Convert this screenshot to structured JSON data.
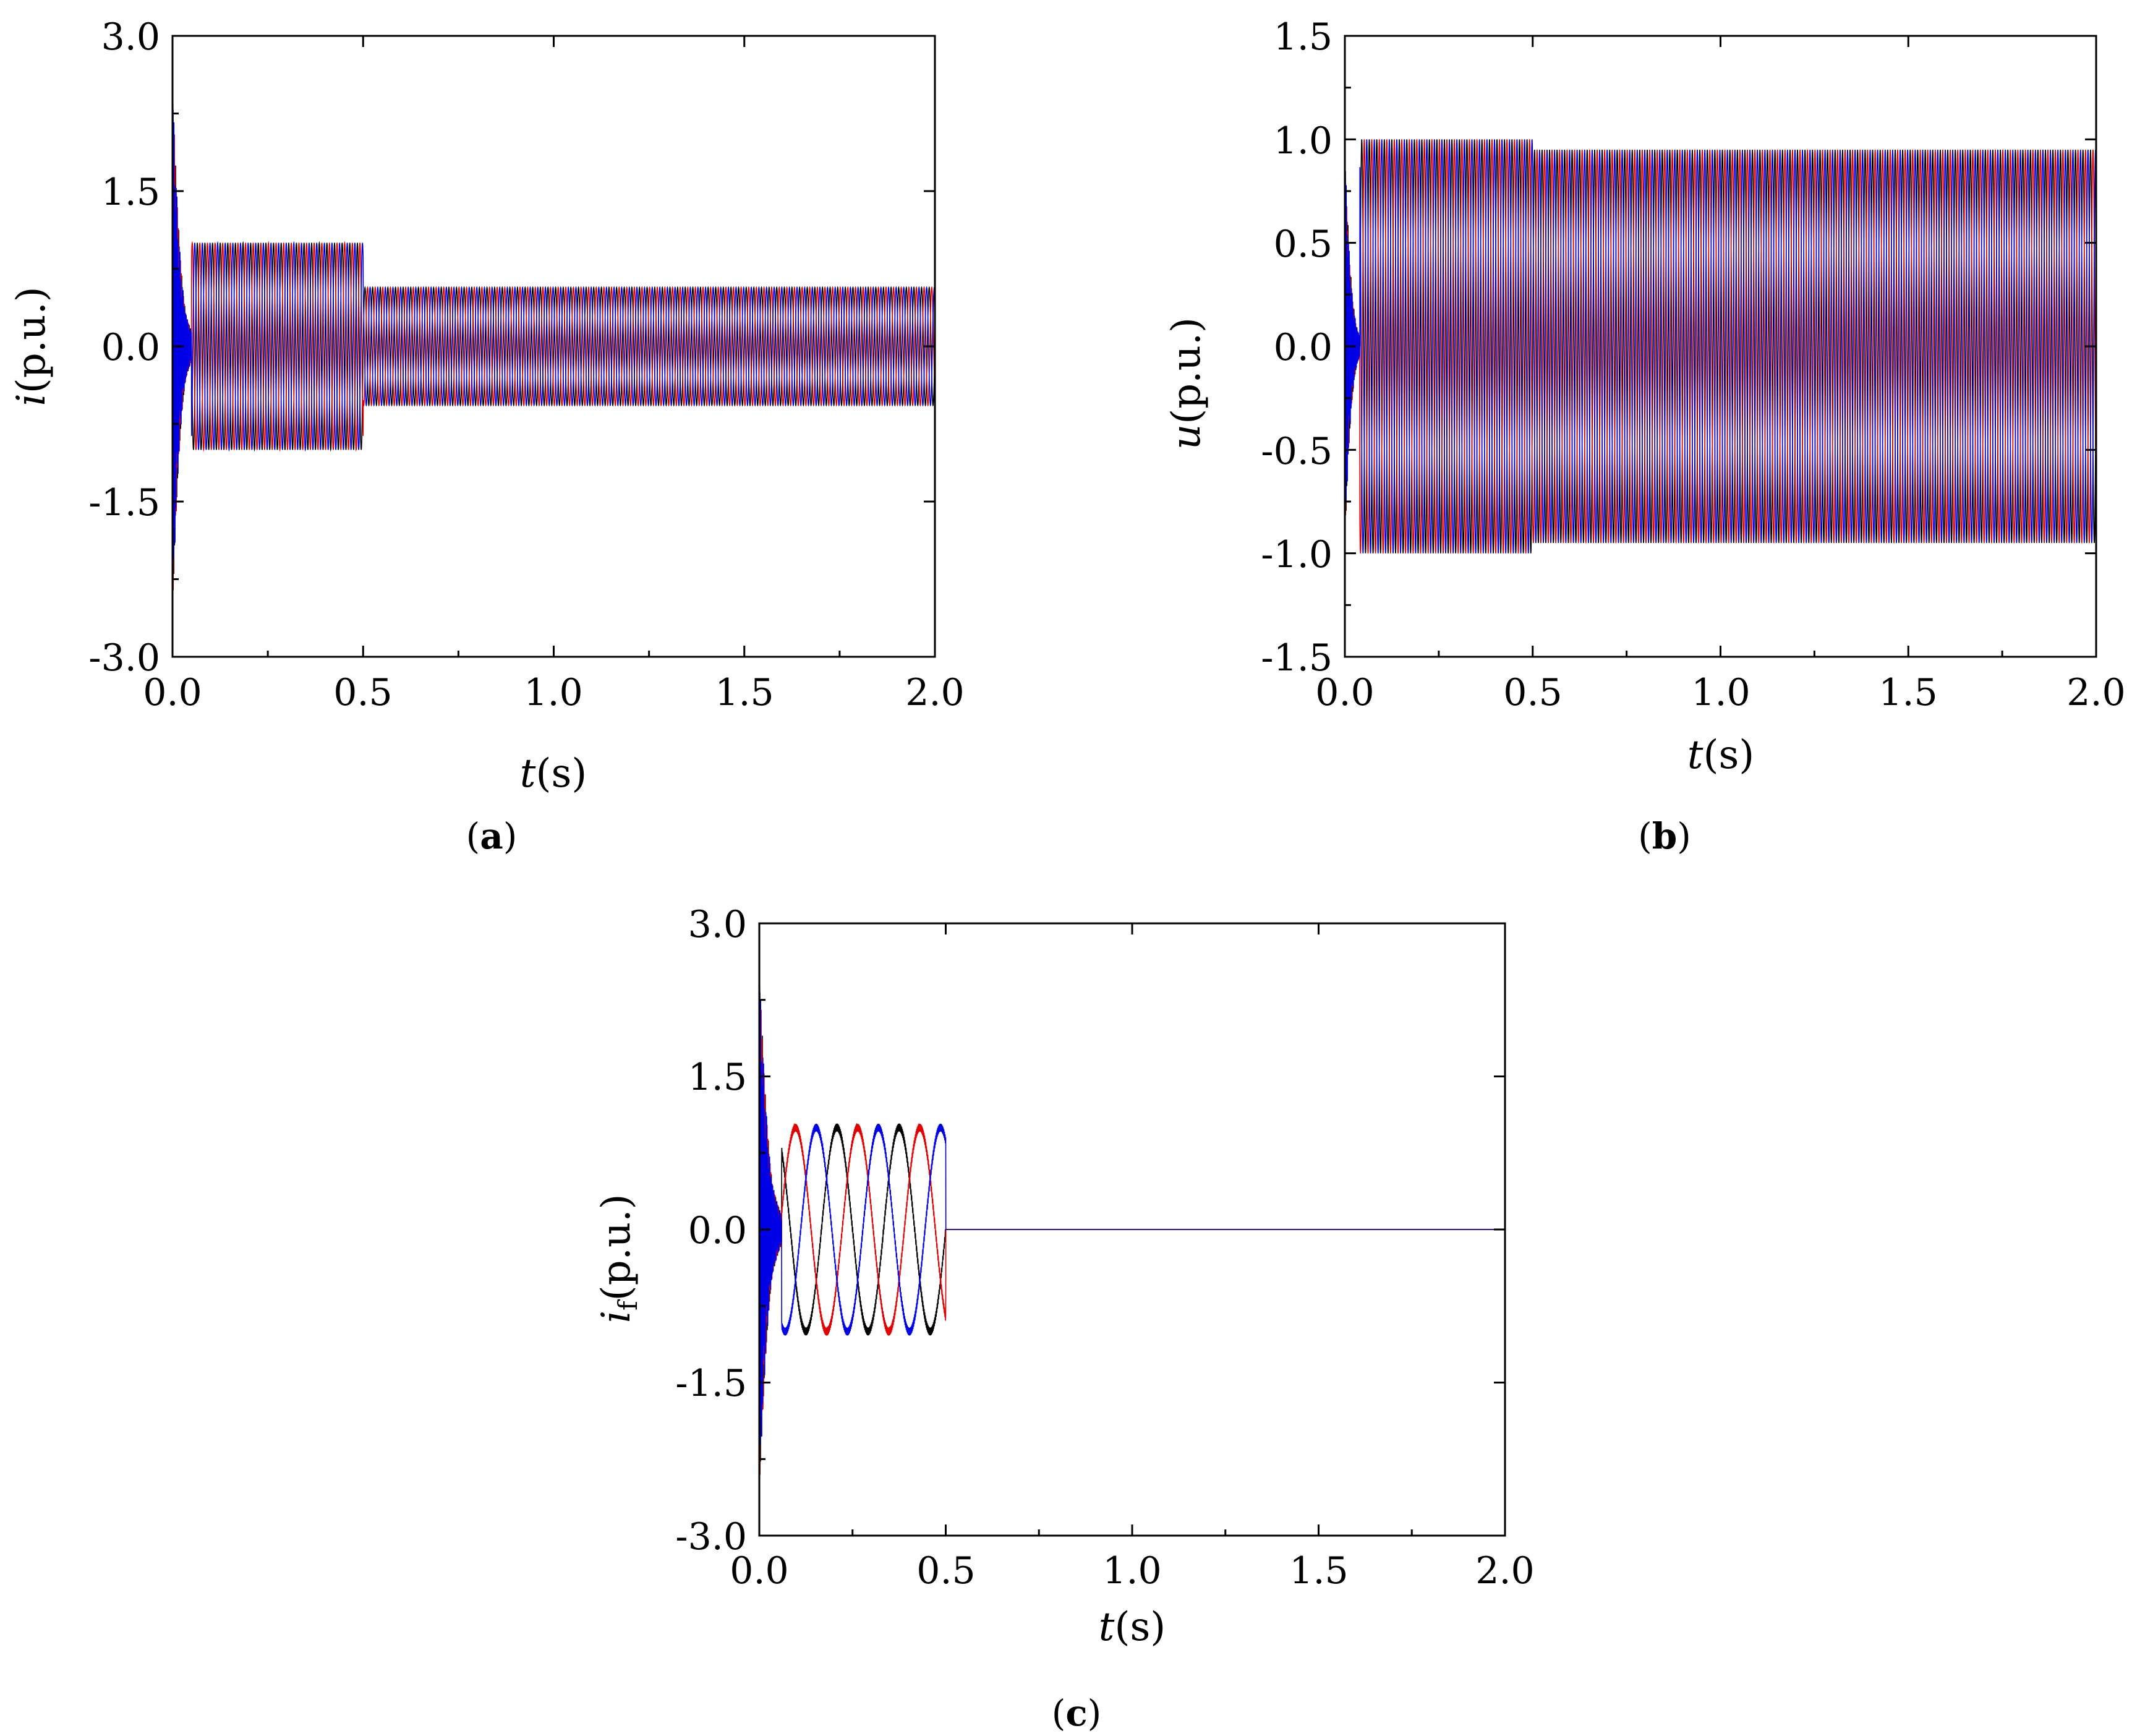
{
  "figure": {
    "panels": [
      {
        "id": "a",
        "caption_letter": "a"
      },
      {
        "id": "b",
        "caption_letter": "b"
      },
      {
        "id": "c",
        "caption_letter": "c"
      }
    ]
  },
  "chart_data": [
    {
      "panel": "a",
      "type": "line",
      "xlabel": "t(s)",
      "ylabel": "i(p.u.)",
      "xlim": [
        0.0,
        2.0
      ],
      "ylim": [
        -3.0,
        3.0
      ],
      "x_ticks": [
        "0.0",
        "0.5",
        "1.0",
        "1.5",
        "2.0"
      ],
      "y_ticks": [
        "3.0",
        "1.5",
        "0.0",
        "-1.5",
        "-3.0"
      ],
      "grid": false,
      "series_colors": [
        "#000000",
        "#e00000",
        "#0000e6"
      ],
      "segments": [
        {
          "t_start": 0.05,
          "t_end": 0.5,
          "amplitude": 1.0
        },
        {
          "t_start": 0.5,
          "t_end": 2.0,
          "amplitude": 0.57
        }
      ],
      "transient": {
        "t_end": 0.05,
        "peak_max": 3.0,
        "peak_min": -3.0
      },
      "fundamental_frequency_hz": 50
    },
    {
      "panel": "b",
      "type": "line",
      "xlabel": "t(s)",
      "ylabel": "u(p.u.)",
      "xlim": [
        0.0,
        2.0
      ],
      "ylim": [
        -1.5,
        1.5
      ],
      "x_ticks": [
        "0.0",
        "0.5",
        "1.0",
        "1.5",
        "2.0"
      ],
      "y_ticks": [
        "1.5",
        "1.0",
        "0.5",
        "0.0",
        "-0.5",
        "-1.0",
        "-1.5"
      ],
      "grid": false,
      "series_colors": [
        "#000000",
        "#e00000",
        "#0000e6"
      ],
      "segments": [
        {
          "t_start": 0.0,
          "t_end": 0.5,
          "amplitude": 1.0
        },
        {
          "t_start": 0.5,
          "t_end": 2.0,
          "amplitude": 0.95
        }
      ],
      "transient": {
        "t_end": 0.04,
        "peak_max": 1.07,
        "peak_min": -1.14
      },
      "fundamental_frequency_hz": 50
    },
    {
      "panel": "c",
      "type": "line",
      "xlabel": "t(s)",
      "ylabel": "if(p.u.)",
      "xlim": [
        0.0,
        2.0
      ],
      "ylim": [
        -3.0,
        3.0
      ],
      "x_ticks": [
        "0.0",
        "0.5",
        "1.0",
        "1.5",
        "2.0"
      ],
      "y_ticks": [
        "3.0",
        "1.5",
        "0.0",
        "-1.5",
        "-3.0"
      ],
      "grid": false,
      "series_colors": [
        "#000000",
        "#e00000",
        "#0000e6"
      ],
      "segments": [
        {
          "t_start": 0.06,
          "t_end": 0.5,
          "amplitude": 1.0
        },
        {
          "t_start": 0.5,
          "t_end": 2.0,
          "amplitude": 0.0
        }
      ],
      "transient": {
        "t_end": 0.06,
        "peak_max": 3.0,
        "peak_min": -3.0
      },
      "fundamental_frequency_hz": 6
    }
  ]
}
